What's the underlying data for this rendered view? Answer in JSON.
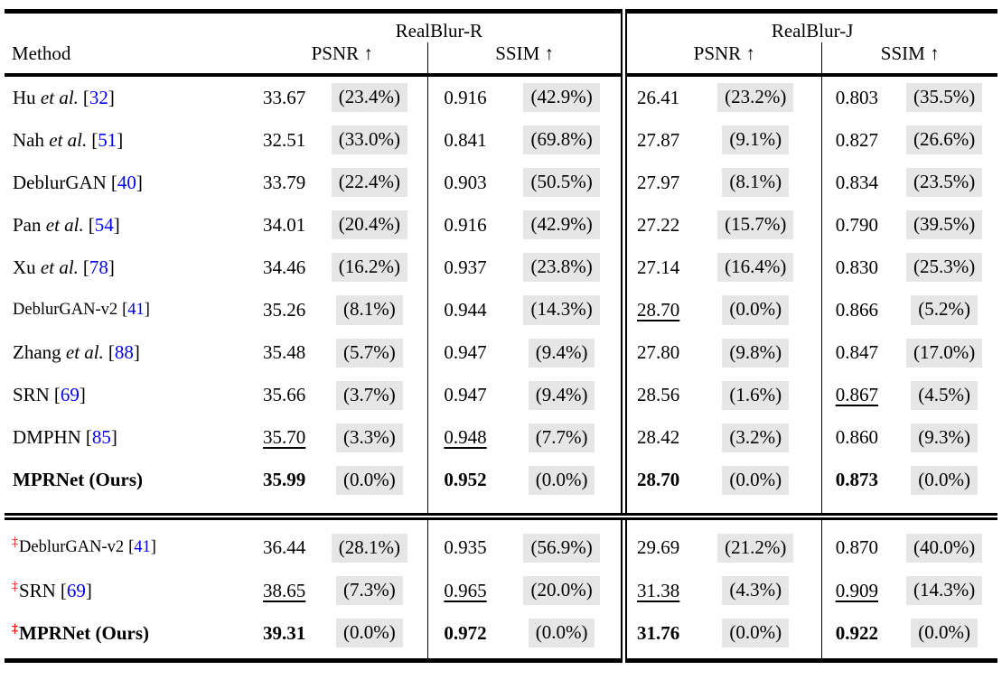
{
  "colors": {
    "cite-blue": "#0000EE",
    "dagger-red": "#EE0000",
    "pct-bg": "#E6E6E6",
    "rule": "#000000"
  },
  "table": {
    "header": {
      "method": "Method",
      "groups": [
        {
          "label": "RealBlur-R",
          "metrics": [
            "PSNR ↑",
            "SSIM ↑"
          ]
        },
        {
          "label": "RealBlur-J",
          "metrics": [
            "PSNR ↑",
            "SSIM ↑"
          ]
        }
      ]
    },
    "sections": [
      {
        "rows": [
          {
            "prefix": "",
            "name": "Hu",
            "etal": true,
            "cite": "32",
            "bold": false,
            "small": false,
            "cells": [
              {
                "v": "33.67",
                "p": "(23.4%)",
                "u": false
              },
              {
                "v": "0.916",
                "p": "(42.9%)",
                "u": false
              },
              {
                "v": "26.41",
                "p": "(23.2%)",
                "u": false
              },
              {
                "v": "0.803",
                "p": "(35.5%)",
                "u": false
              }
            ]
          },
          {
            "prefix": "",
            "name": "Nah",
            "etal": true,
            "cite": "51",
            "bold": false,
            "small": false,
            "cells": [
              {
                "v": "32.51",
                "p": "(33.0%)",
                "u": false
              },
              {
                "v": "0.841",
                "p": "(69.8%)",
                "u": false
              },
              {
                "v": "27.87",
                "p": "(9.1%)",
                "u": false
              },
              {
                "v": "0.827",
                "p": "(26.6%)",
                "u": false
              }
            ]
          },
          {
            "prefix": "",
            "name": "DeblurGAN",
            "etal": false,
            "cite": "40",
            "bold": false,
            "small": false,
            "cells": [
              {
                "v": "33.79",
                "p": "(22.4%)",
                "u": false
              },
              {
                "v": "0.903",
                "p": "(50.5%)",
                "u": false
              },
              {
                "v": "27.97",
                "p": "(8.1%)",
                "u": false
              },
              {
                "v": "0.834",
                "p": "(23.5%)",
                "u": false
              }
            ]
          },
          {
            "prefix": "",
            "name": "Pan",
            "etal": true,
            "cite": "54",
            "bold": false,
            "small": false,
            "cells": [
              {
                "v": "34.01",
                "p": "(20.4%)",
                "u": false
              },
              {
                "v": "0.916",
                "p": "(42.9%)",
                "u": false
              },
              {
                "v": "27.22",
                "p": "(15.7%)",
                "u": false
              },
              {
                "v": "0.790",
                "p": "(39.5%)",
                "u": false
              }
            ]
          },
          {
            "prefix": "",
            "name": "Xu",
            "etal": true,
            "cite": "78",
            "bold": false,
            "small": false,
            "cells": [
              {
                "v": "34.46",
                "p": "(16.2%)",
                "u": false
              },
              {
                "v": "0.937",
                "p": "(23.8%)",
                "u": false
              },
              {
                "v": "27.14",
                "p": "(16.4%)",
                "u": false
              },
              {
                "v": "0.830",
                "p": "(25.3%)",
                "u": false
              }
            ]
          },
          {
            "prefix": "",
            "name": "DeblurGAN-v2",
            "etal": false,
            "cite": "41",
            "bold": false,
            "small": true,
            "cells": [
              {
                "v": "35.26",
                "p": "(8.1%)",
                "u": false
              },
              {
                "v": "0.944",
                "p": "(14.3%)",
                "u": false
              },
              {
                "v": "28.70",
                "p": "(0.0%)",
                "u": true
              },
              {
                "v": "0.866",
                "p": "(5.2%)",
                "u": false
              }
            ]
          },
          {
            "prefix": "",
            "name": "Zhang",
            "etal": true,
            "cite": "88",
            "bold": false,
            "small": false,
            "cells": [
              {
                "v": "35.48",
                "p": "(5.7%)",
                "u": false
              },
              {
                "v": "0.947",
                "p": "(9.4%)",
                "u": false
              },
              {
                "v": "27.80",
                "p": "(9.8%)",
                "u": false
              },
              {
                "v": "0.847",
                "p": "(17.0%)",
                "u": false
              }
            ]
          },
          {
            "prefix": "",
            "name": "SRN",
            "etal": false,
            "cite": "69",
            "bold": false,
            "small": false,
            "cells": [
              {
                "v": "35.66",
                "p": "(3.7%)",
                "u": false
              },
              {
                "v": "0.947",
                "p": "(9.4%)",
                "u": false
              },
              {
                "v": "28.56",
                "p": "(1.6%)",
                "u": false
              },
              {
                "v": "0.867",
                "p": "(4.5%)",
                "u": true
              }
            ]
          },
          {
            "prefix": "",
            "name": "DMPHN",
            "etal": false,
            "cite": "85",
            "bold": false,
            "small": false,
            "cells": [
              {
                "v": "35.70",
                "p": "(3.3%)",
                "u": true
              },
              {
                "v": "0.948",
                "p": "(7.7%)",
                "u": true
              },
              {
                "v": "28.42",
                "p": "(3.2%)",
                "u": false
              },
              {
                "v": "0.860",
                "p": "(9.3%)",
                "u": false
              }
            ]
          },
          {
            "prefix": "",
            "name": "MPRNet (Ours)",
            "etal": false,
            "cite": null,
            "bold": true,
            "small": false,
            "cells": [
              {
                "v": "35.99",
                "p": "(0.0%)",
                "u": false
              },
              {
                "v": "0.952",
                "p": "(0.0%)",
                "u": false
              },
              {
                "v": "28.70",
                "p": "(0.0%)",
                "u": false
              },
              {
                "v": "0.873",
                "p": "(0.0%)",
                "u": false
              }
            ]
          }
        ]
      },
      {
        "rows": [
          {
            "prefix": "‡",
            "name": "DeblurGAN-v2",
            "etal": false,
            "cite": "41",
            "bold": false,
            "small": true,
            "cells": [
              {
                "v": "36.44",
                "p": "(28.1%)",
                "u": false
              },
              {
                "v": "0.935",
                "p": "(56.9%)",
                "u": false
              },
              {
                "v": "29.69",
                "p": "(21.2%)",
                "u": false
              },
              {
                "v": "0.870",
                "p": "(40.0%)",
                "u": false
              }
            ]
          },
          {
            "prefix": "‡",
            "name": "SRN",
            "etal": false,
            "cite": "69",
            "bold": false,
            "small": false,
            "cells": [
              {
                "v": "38.65",
                "p": "(7.3%)",
                "u": true
              },
              {
                "v": "0.965",
                "p": "(20.0%)",
                "u": true
              },
              {
                "v": "31.38",
                "p": "(4.3%)",
                "u": true
              },
              {
                "v": "0.909",
                "p": "(14.3%)",
                "u": true
              }
            ]
          },
          {
            "prefix": "‡",
            "name": "MPRNet (Ours)",
            "etal": false,
            "cite": null,
            "bold": true,
            "small": false,
            "cells": [
              {
                "v": "39.31",
                "p": "(0.0%)",
                "u": false
              },
              {
                "v": "0.972",
                "p": "(0.0%)",
                "u": false
              },
              {
                "v": "31.76",
                "p": "(0.0%)",
                "u": false
              },
              {
                "v": "0.922",
                "p": "(0.0%)",
                "u": false
              }
            ]
          }
        ]
      }
    ]
  }
}
